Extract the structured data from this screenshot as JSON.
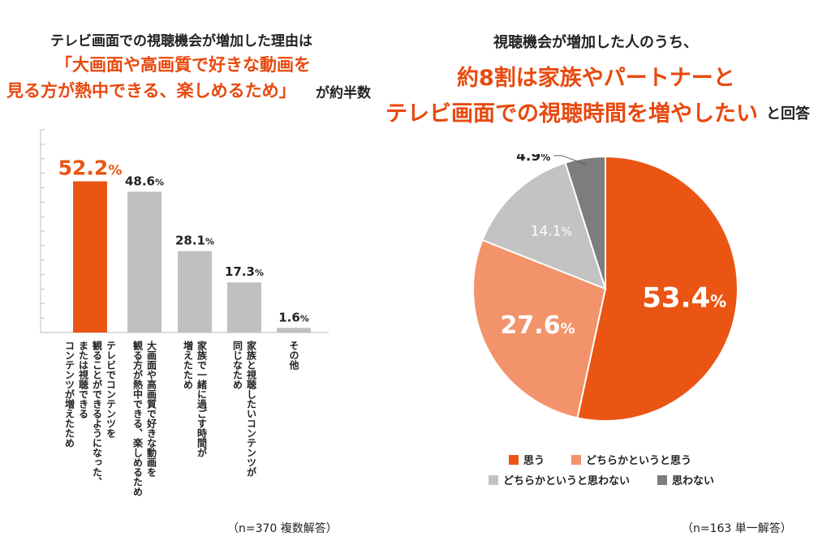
{
  "left": {
    "heading_line1": "テレビ画面での視聴機会が増加した理由は",
    "heading_line2": "「大画面や高画質で好きな動画を",
    "heading_line3": "見る方が熱中できる、楽しめるため」",
    "heading_line3_suffix": "が約半数",
    "note": "（n=370 複数解答）"
  },
  "right": {
    "heading_line1": "視聴機会が増加した人のうち、",
    "heading_line2": "約8割は家族やパートナーと",
    "heading_line3": "テレビ画面での視聴時間を増やしたい",
    "heading_line3_suffix": "と回答",
    "note": "（n=163 単一解答）"
  },
  "chart_data": [
    {
      "type": "bar",
      "categories": [
        "テレビでコンテンツを観ることができるようになった、または視聴できるコンテンツが増えたため",
        "大画面や高画質で好きな動画を観る方が熱中できる、楽しめるため",
        "家族で一緒に過ごす時間が増えたため",
        "家族と視聴したいコンテンツが同じなため",
        "その他"
      ],
      "category_lines": [
        [
          "テレビでコンテンツを",
          "観ることができるようになった、",
          "または視聴できる",
          "コンテンツが増えたため"
        ],
        [
          "大画面や高画質で好きな動画を",
          "観る方が熱中できる、楽しめるため"
        ],
        [
          "家族で一緒に過ごす時間が",
          "増えたため"
        ],
        [
          "家族と視聴したいコンテンツが",
          "同じなため"
        ],
        [
          "その他"
        ]
      ],
      "values": [
        52.2,
        48.6,
        28.1,
        17.3,
        1.6
      ],
      "value_labels": [
        "52.2",
        "48.6",
        "28.1",
        "17.3",
        "1.6"
      ],
      "unit": "%",
      "ylim": [
        0,
        70
      ],
      "colors": [
        "#ea5514",
        "#c0c0c0",
        "#c0c0c0",
        "#c0c0c0",
        "#c0c0c0"
      ],
      "highlight_index": 0
    },
    {
      "type": "pie",
      "labels": [
        "思う",
        "どちらかというと思う",
        "どちらかというと思わない",
        "思わない"
      ],
      "values": [
        53.4,
        27.6,
        14.1,
        4.9
      ],
      "value_labels": [
        "53.4",
        "27.6",
        "14.1",
        "4.9"
      ],
      "unit": "%",
      "colors": [
        "#ea5514",
        "#f3936b",
        "#c3c3c3",
        "#7d7d7d"
      ],
      "legend_position": "bottom"
    }
  ]
}
